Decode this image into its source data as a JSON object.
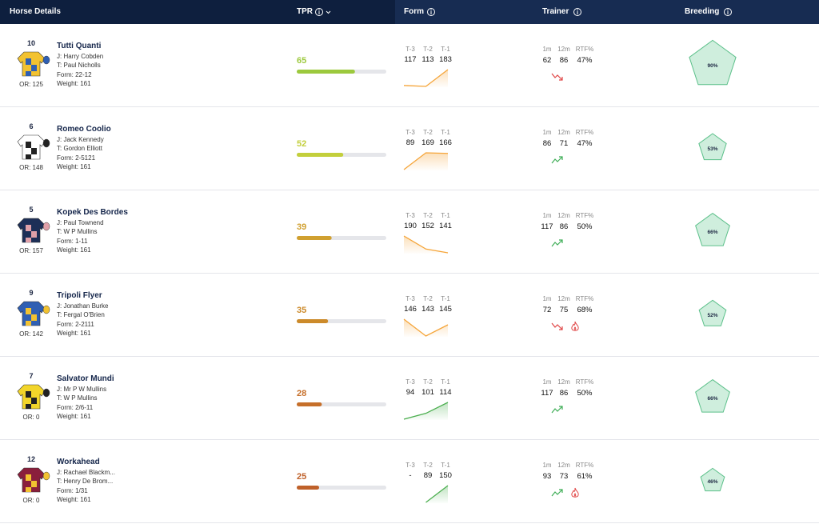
{
  "header": {
    "columns": [
      "Horse Details",
      "TPR",
      "Form",
      "Trainer",
      "Breeding"
    ]
  },
  "rows": [
    {
      "number": "10",
      "name": "Tutti Quanti",
      "jockey": "J: Harry Cobden",
      "trainer": "T: Paul Nicholls",
      "form": "Form: 22-12",
      "weight": "Weight: 161",
      "rating": "OR: 125",
      "silk": [
        "#f2c230",
        "#2f5fb3"
      ],
      "tpr": 65,
      "tpr_color": "#9cc93d",
      "form_labels": [
        "T-3",
        "T-2",
        "T-1"
      ],
      "form_values": [
        117,
        113,
        183
      ],
      "form_color": "#f5a53a",
      "trainer_labels": [
        "1m",
        "12m",
        "RTF%"
      ],
      "trainer_values": [
        62,
        86,
        "47%"
      ],
      "trend": "down",
      "hot": false,
      "breeding": {
        "value": 90,
        "label": "90%"
      }
    },
    {
      "number": "6",
      "name": "Romeo Coolio",
      "jockey": "J: Jack Kennedy",
      "trainer": "T: Gordon Elliott",
      "form": "Form: 2-5121",
      "weight": "Weight: 161",
      "rating": "OR: 148",
      "silk": [
        "#ffffff",
        "#222222"
      ],
      "tpr": 52,
      "tpr_color": "#c3cf3c",
      "form_labels": [
        "T-3",
        "T-2",
        "T-1"
      ],
      "form_values": [
        89,
        169,
        166
      ],
      "form_color": "#f5a53a",
      "trainer_labels": [
        "1m",
        "12m",
        "RTF%"
      ],
      "trainer_values": [
        86,
        71,
        "47%"
      ],
      "trend": "up",
      "hot": false,
      "breeding": {
        "value": 53,
        "label": "53%"
      }
    },
    {
      "number": "5",
      "name": "Kopek Des Bordes",
      "jockey": "J: Paul Townend",
      "trainer": "T: W P Mullins",
      "form": "Form: 1-11",
      "weight": "Weight: 161",
      "rating": "OR: 157",
      "silk": [
        "#1d2f57",
        "#e0a0a8"
      ],
      "tpr": 39,
      "tpr_color": "#d0a030",
      "form_labels": [
        "T-3",
        "T-2",
        "T-1"
      ],
      "form_values": [
        190,
        152,
        141
      ],
      "form_color": "#f5a53a",
      "trainer_labels": [
        "1m",
        "12m",
        "RTF%"
      ],
      "trainer_values": [
        117,
        86,
        "50%"
      ],
      "trend": "up",
      "hot": false,
      "breeding": {
        "value": 66,
        "label": "66%"
      }
    },
    {
      "number": "9",
      "name": "Tripoli Flyer",
      "jockey": "J: Jonathan Burke",
      "trainer": "T: Fergal O'Brien",
      "form": "Form: 2-2111",
      "weight": "Weight: 161",
      "rating": "OR: 142",
      "silk": [
        "#2f5fb3",
        "#f2c230"
      ],
      "tpr": 35,
      "tpr_color": "#cc8a2a",
      "form_labels": [
        "T-3",
        "T-2",
        "T-1"
      ],
      "form_values": [
        146,
        143,
        145
      ],
      "form_color": "#f5a53a",
      "trainer_labels": [
        "1m",
        "12m",
        "RTF%"
      ],
      "trainer_values": [
        72,
        75,
        "68%"
      ],
      "trend": "down",
      "hot": true,
      "breeding": {
        "value": 52,
        "label": "52%"
      }
    },
    {
      "number": "7",
      "name": "Salvator Mundi",
      "jockey": "J: Mr P W Mullins",
      "trainer": "T: W P Mullins",
      "form": "Form: 2/6-11",
      "weight": "Weight: 161",
      "rating": "OR: 0",
      "silk": [
        "#f2d52a",
        "#222222"
      ],
      "tpr": 28,
      "tpr_color": "#c66f2a",
      "form_labels": [
        "T-3",
        "T-2",
        "T-1"
      ],
      "form_values": [
        94,
        101,
        114
      ],
      "form_color": "#4caf50",
      "trainer_labels": [
        "1m",
        "12m",
        "RTF%"
      ],
      "trainer_values": [
        117,
        86,
        "50%"
      ],
      "trend": "up",
      "hot": false,
      "breeding": {
        "value": 66,
        "label": "66%"
      }
    },
    {
      "number": "12",
      "name": "Workahead",
      "jockey": "J: Rachael Blackm...",
      "trainer": "T: Henry De Brom...",
      "form": "Form: 1/31",
      "weight": "Weight: 161",
      "rating": "OR: 0",
      "silk": [
        "#8a1f3c",
        "#f2c230"
      ],
      "tpr": 25,
      "tpr_color": "#bf612a",
      "form_labels": [
        "T-3",
        "T-2",
        "T-1"
      ],
      "form_values": [
        "-",
        89,
        150
      ],
      "form_color": "#4caf50",
      "trainer_labels": [
        "1m",
        "12m",
        "RTF%"
      ],
      "trainer_values": [
        93,
        73,
        "61%"
      ],
      "trend": "up",
      "hot": true,
      "breeding": {
        "value": 46,
        "label": "46%"
      }
    }
  ]
}
